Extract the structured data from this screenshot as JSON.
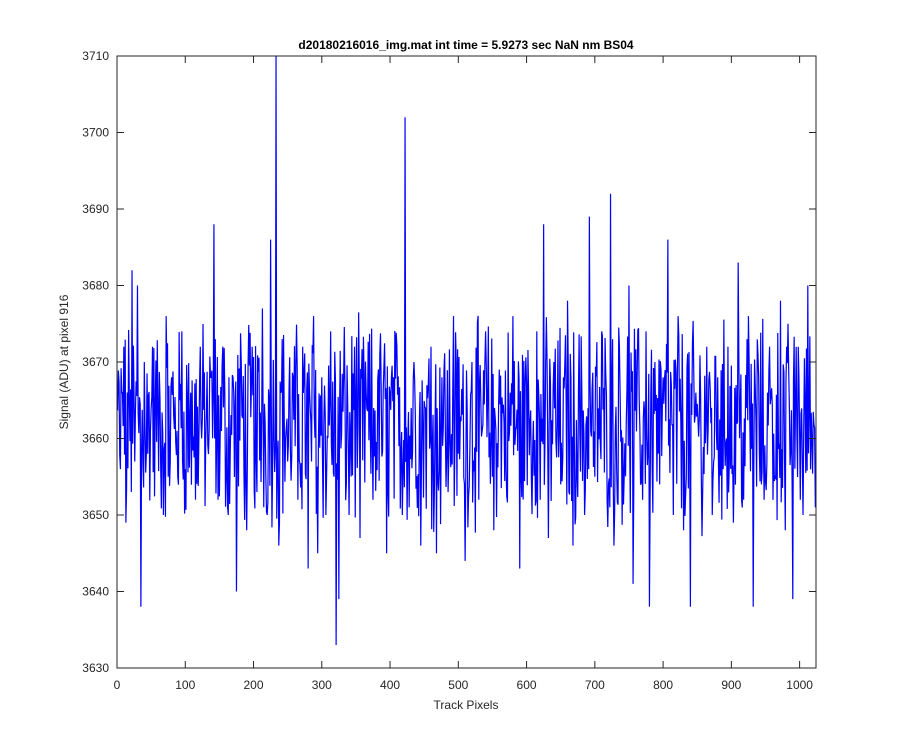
{
  "chart_data": {
    "type": "line",
    "title": "d20180216016_img.mat int time = 5.9273 sec  NaN nm BS04",
    "xlabel": "Track Pixels",
    "ylabel": "Signal (ADU) at pixel 916",
    "xlim": [
      0,
      1024
    ],
    "ylim": [
      3630,
      3710
    ],
    "xticks": [
      0,
      100,
      200,
      300,
      400,
      500,
      600,
      700,
      800,
      900,
      1000
    ],
    "yticks": [
      3630,
      3640,
      3650,
      3660,
      3670,
      3680,
      3690,
      3700,
      3710
    ],
    "grid": false,
    "series": [
      {
        "color": "#0000ff",
        "description": "Noisy signal, 1024 samples, mean ~3662, typical range 3648-3676; notable peaks/dips listed as approximate (x, y) points",
        "x": [
          0,
          5,
          10,
          13,
          18,
          22,
          26,
          30,
          35,
          40,
          45,
          52,
          60,
          68,
          72,
          75,
          80,
          88,
          95,
          100,
          108,
          115,
          122,
          130,
          137,
          142,
          148,
          155,
          163,
          170,
          175,
          182,
          190,
          198,
          205,
          213,
          220,
          225,
          230,
          233,
          237,
          242,
          250,
          258,
          265,
          272,
          280,
          288,
          294,
          300,
          306,
          313,
          318,
          321,
          325,
          332,
          340,
          348,
          356,
          365,
          375,
          385,
          395,
          405,
          413,
          418,
          422,
          428,
          435,
          445,
          452,
          460,
          468,
          476,
          485,
          493,
          500,
          510,
          520,
          530,
          540,
          552,
          560,
          570,
          580,
          590,
          600,
          607,
          615,
          620,
          625,
          632,
          640,
          650,
          660,
          668,
          676,
          685,
          692,
          700,
          710,
          718,
          723,
          728,
          736,
          743,
          750,
          756,
          762,
          770,
          775,
          780,
          788,
          795,
          800,
          807,
          815,
          822,
          830,
          840,
          848,
          856,
          864,
          872,
          880,
          888,
          895,
          903,
          910,
          918,
          925,
          932,
          940,
          948,
          956,
          964,
          972,
          979,
          985,
          990,
          998,
          1005,
          1012,
          1018,
          1023
        ],
        "y": [
          3664,
          3656,
          3672,
          3649,
          3666,
          3682,
          3657,
          3680,
          3638,
          3670,
          3658,
          3672,
          3664,
          3650,
          3676,
          3655,
          3668,
          3661,
          3674,
          3656,
          3666,
          3652,
          3672,
          3660,
          3668,
          3688,
          3652,
          3672,
          3650,
          3668,
          3640,
          3670,
          3648,
          3672,
          3653,
          3677,
          3650,
          3686,
          3660,
          3710,
          3646,
          3673,
          3657,
          3668,
          3652,
          3672,
          3643,
          3676,
          3645,
          3668,
          3650,
          3674,
          3655,
          3633,
          3639,
          3668,
          3650,
          3672,
          3647,
          3666,
          3652,
          3671,
          3645,
          3668,
          3659,
          3650,
          3702,
          3651,
          3670,
          3646,
          3664,
          3672,
          3645,
          3668,
          3653,
          3676,
          3658,
          3644,
          3670,
          3652,
          3674,
          3648,
          3669,
          3656,
          3676,
          3643,
          3667,
          3655,
          3674,
          3652,
          3688,
          3647,
          3670,
          3654,
          3678,
          3646,
          3666,
          3650,
          3689,
          3655,
          3674,
          3652,
          3692,
          3646,
          3672,
          3655,
          3680,
          3641,
          3668,
          3652,
          3674,
          3638,
          3670,
          3654,
          3668,
          3686,
          3650,
          3676,
          3648,
          3638,
          3666,
          3655,
          3672,
          3650,
          3668,
          3656,
          3672,
          3649,
          3683,
          3652,
          3676,
          3638,
          3668,
          3652,
          3672,
          3655,
          3678,
          3648,
          3664,
          3639,
          3672,
          3650,
          3680,
          3660,
          3651
        ]
      }
    ]
  }
}
